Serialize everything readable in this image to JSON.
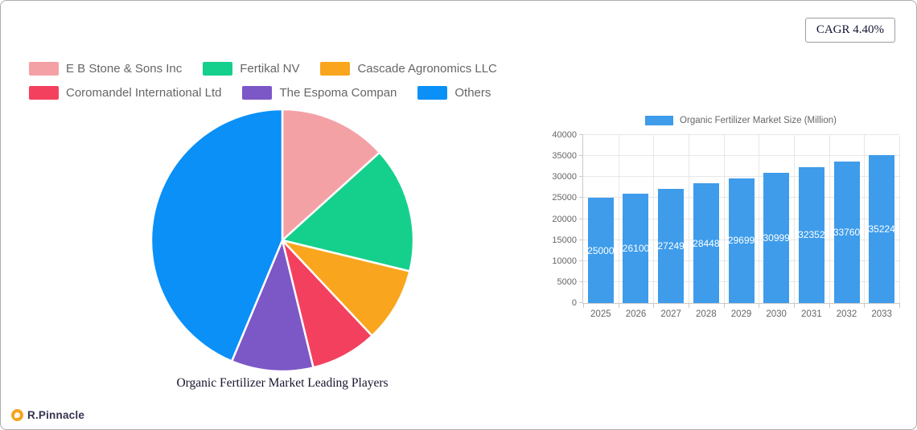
{
  "cagr_badge": {
    "label": "CAGR 4.40%"
  },
  "brand": {
    "name": "R.Pinnacle",
    "icon": "pinnacle-circle-icon",
    "icon_color": "#F2A51F"
  },
  "chart_data": [
    {
      "type": "pie",
      "title": "Organic Fertilizer Market Leading Players",
      "legend_position": "top-left",
      "start_angle_deg": 0,
      "direction": "clockwise",
      "slices": [
        {
          "label": "E B Stone & Sons Inc",
          "value_pct": 13.3,
          "color": "#F4A1A6"
        },
        {
          "label": "Fertikal NV",
          "value_pct": 15.5,
          "color": "#15D08C"
        },
        {
          "label": "Cascade Agronomics LLC",
          "value_pct": 9.2,
          "color": "#F9A61E"
        },
        {
          "label": "Coromandel International Ltd",
          "value_pct": 8.2,
          "color": "#F4405F"
        },
        {
          "label": "The Espoma Compan",
          "value_pct": 10.1,
          "color": "#7C57C6"
        },
        {
          "label": "Others",
          "value_pct": 43.7,
          "color": "#0A90F6"
        }
      ]
    },
    {
      "type": "bar",
      "series_label": "Organic Fertilizer Market Size (Million)",
      "legend_position": "top-center",
      "categories": [
        "2025",
        "2026",
        "2027",
        "2028",
        "2029",
        "2030",
        "2031",
        "2032",
        "2033"
      ],
      "values": [
        25000,
        26100,
        27249,
        28448,
        29699,
        30999,
        32352,
        33760,
        35224
      ],
      "bar_color": "#3E9CEA",
      "value_label_color": "#FFFFFF",
      "ylim": [
        0,
        40000
      ],
      "ytick_step": 5000,
      "grid": true
    }
  ]
}
